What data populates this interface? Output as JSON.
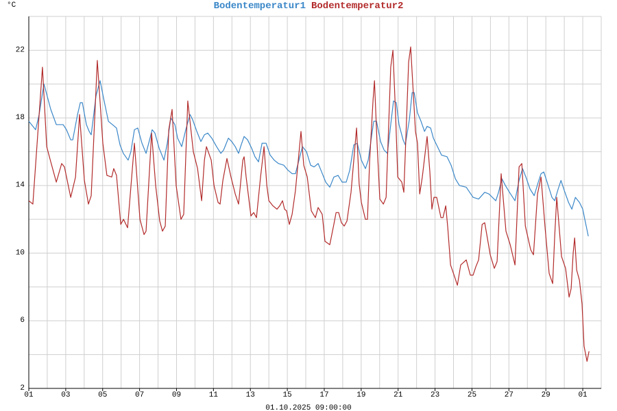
{
  "chart_data": {
    "type": "line",
    "y_label": "°C",
    "x_label": "01.10.2025 09:00:00",
    "xlim": [
      0,
      31
    ],
    "ylim": [
      2,
      24
    ],
    "xticks": [
      {
        "value": 0,
        "label": "01"
      },
      {
        "value": 2,
        "label": "03"
      },
      {
        "value": 4,
        "label": "05"
      },
      {
        "value": 6,
        "label": "07"
      },
      {
        "value": 8,
        "label": "09"
      },
      {
        "value": 10,
        "label": "11"
      },
      {
        "value": 12,
        "label": "13"
      },
      {
        "value": 14,
        "label": "15"
      },
      {
        "value": 16,
        "label": "17"
      },
      {
        "value": 18,
        "label": "19"
      },
      {
        "value": 20,
        "label": "21"
      },
      {
        "value": 22,
        "label": "23"
      },
      {
        "value": 24,
        "label": "25"
      },
      {
        "value": 26,
        "label": "27"
      },
      {
        "value": 28,
        "label": "29"
      },
      {
        "value": 30,
        "label": "01"
      }
    ],
    "x_minor_ticks": [
      1,
      3,
      5,
      7,
      9,
      11,
      13,
      15,
      17,
      19,
      21,
      23,
      25,
      27,
      29,
      31
    ],
    "yticks": [
      2,
      6,
      10,
      14,
      18,
      22
    ],
    "y_minor_ticks": [
      4,
      8,
      12,
      16,
      20,
      24
    ],
    "grid": true,
    "series": [
      {
        "name": "Bodentemperatur1",
        "color": "#3a87c8",
        "x": [
          0,
          0.37,
          0.56,
          0.82,
          0.97,
          1.19,
          1.49,
          1.86,
          2.04,
          2.27,
          2.38,
          2.64,
          2.79,
          2.9,
          3.12,
          3.27,
          3.38,
          3.64,
          3.86,
          4.08,
          4.31,
          4.53,
          4.75,
          4.94,
          5.12,
          5.38,
          5.53,
          5.72,
          5.9,
          6.13,
          6.35,
          6.54,
          6.68,
          6.83,
          7.06,
          7.32,
          7.5,
          7.69,
          7.91,
          8.06,
          8.28,
          8.5,
          8.73,
          8.87,
          9.1,
          9.32,
          9.51,
          9.69,
          9.91,
          10.17,
          10.4,
          10.55,
          10.81,
          10.99,
          11.18,
          11.36,
          11.47,
          11.66,
          11.85,
          12.07,
          12.25,
          12.44,
          12.63,
          12.85,
          13.07,
          13.29,
          13.52,
          13.81,
          14.04,
          14.26,
          14.44,
          14.63,
          14.82,
          15.04,
          15.26,
          15.45,
          15.67,
          15.86,
          16.08,
          16.3,
          16.52,
          16.75,
          16.97,
          17.19,
          17.38,
          17.6,
          17.79,
          18.01,
          18.23,
          18.38,
          18.68,
          18.83,
          19.05,
          19.24,
          19.42,
          19.61,
          19.75,
          19.9,
          20.05,
          20.27,
          20.39,
          20.61,
          20.76,
          20.87,
          21.05,
          21.24,
          21.43,
          21.57,
          21.76,
          21.91,
          22.13,
          22.35,
          22.65,
          22.87,
          23.1,
          23.32,
          23.69,
          24.06,
          24.36,
          24.69,
          24.92,
          25.29,
          25.44,
          25.62,
          25.81,
          26.03,
          26.33,
          26.55,
          26.74,
          26.92,
          27.14,
          27.37,
          27.59,
          27.74,
          27.89,
          28.07,
          28.33,
          28.48,
          28.67,
          28.82,
          29,
          29.23,
          29.41,
          29.6,
          29.82,
          30,
          30.11,
          30.3
        ],
        "values": [
          17.8,
          17.3,
          18.2,
          20,
          19.4,
          18.5,
          17.6,
          17.6,
          17.3,
          16.7,
          16.7,
          18.2,
          18.9,
          18.9,
          17.6,
          17.2,
          17,
          19.3,
          20.2,
          19,
          17.8,
          17.6,
          17.4,
          16.4,
          15.9,
          15.5,
          16,
          17.3,
          17.4,
          16.5,
          15.9,
          16.7,
          17.3,
          17.1,
          16.2,
          15.5,
          16.5,
          18,
          17.6,
          16.8,
          16.3,
          17.3,
          18.2,
          17.9,
          17.2,
          16.6,
          17,
          17.1,
          16.8,
          16.3,
          15.9,
          16.1,
          16.8,
          16.6,
          16.3,
          15.9,
          16.3,
          16.9,
          16.7,
          16.2,
          15.7,
          15.4,
          16.5,
          16.5,
          15.8,
          15.5,
          15.3,
          15.2,
          14.9,
          14.7,
          14.7,
          15.5,
          16.3,
          16,
          15.2,
          15.1,
          15.3,
          14.8,
          14.2,
          13.9,
          14.5,
          14.6,
          14.2,
          14.2,
          14.9,
          16.4,
          16.5,
          15.5,
          15,
          15.5,
          17.8,
          17.8,
          16.6,
          16.1,
          15.9,
          17.7,
          19,
          18.9,
          17.6,
          16.7,
          16.4,
          17.9,
          19.5,
          19.5,
          18.3,
          17.8,
          17.2,
          17.5,
          17.4,
          16.8,
          16.3,
          15.8,
          15.7,
          15.2,
          14.4,
          14,
          13.9,
          13.3,
          13.2,
          13.6,
          13.5,
          13.1,
          13.6,
          14.4,
          14,
          13.6,
          13.1,
          14.3,
          15,
          14.5,
          13.8,
          13.4,
          14.2,
          14.7,
          14.8,
          14.2,
          13.3,
          13.1,
          13.8,
          14.3,
          13.7,
          13,
          12.6,
          13.3,
          13,
          12.6,
          12,
          11
        ]
      },
      {
        "name": "Bodentemperatur2",
        "color": "#b22a2a",
        "x": [
          0,
          0.22,
          0.74,
          0.97,
          1.19,
          1.49,
          1.78,
          1.93,
          2.27,
          2.53,
          2.75,
          3.01,
          3.23,
          3.38,
          3.71,
          4.01,
          4.23,
          4.49,
          4.6,
          4.75,
          4.98,
          5.13,
          5.35,
          5.72,
          6.02,
          6.24,
          6.35,
          6.65,
          6.87,
          7.09,
          7.24,
          7.39,
          7.58,
          7.76,
          7.98,
          8.24,
          8.39,
          8.61,
          8.91,
          9.14,
          9.36,
          9.51,
          9.62,
          9.88,
          10.03,
          10.25,
          10.36,
          10.51,
          10.73,
          10.95,
          11.18,
          11.36,
          11.59,
          11.66,
          11.77,
          12.03,
          12.18,
          12.33,
          12.55,
          12.74,
          12.89,
          13,
          13.22,
          13.44,
          13.59,
          13.74,
          13.85,
          13.96,
          14.11,
          14.26,
          14.44,
          14.74,
          14.89,
          15.08,
          15.3,
          15.52,
          15.67,
          15.89,
          16.04,
          16.3,
          16.52,
          16.64,
          16.78,
          16.93,
          17.08,
          17.23,
          17.45,
          17.75,
          17.89,
          18.01,
          18.23,
          18.34,
          18.46,
          18.64,
          18.72,
          18.86,
          19.01,
          19.2,
          19.35,
          19.6,
          19.72,
          19.87,
          19.98,
          20.2,
          20.31,
          20.46,
          20.57,
          20.68,
          20.94,
          21.05,
          21.17,
          21.31,
          21.57,
          21.72,
          21.83,
          21.94,
          22.09,
          22.32,
          22.43,
          22.58,
          22.69,
          22.84,
          23.06,
          23.21,
          23.39,
          23.69,
          23.91,
          24.06,
          24.21,
          24.36,
          24.55,
          24.69,
          24.99,
          25.21,
          25.36,
          25.58,
          25.84,
          26.07,
          26.33,
          26.55,
          26.7,
          26.89,
          27.18,
          27.33,
          27.55,
          27.74,
          27.96,
          28.18,
          28.37,
          28.48,
          28.59,
          28.85,
          29.07,
          29.26,
          29.37,
          29.48,
          29.56,
          29.67,
          29.82,
          29.96,
          30.07,
          30.23,
          30.34
        ],
        "values": [
          13.1,
          12.9,
          21,
          16.3,
          15.4,
          14.2,
          15.3,
          15.1,
          13.3,
          14.5,
          18.2,
          14.3,
          12.9,
          13.4,
          21.4,
          16.5,
          14.6,
          14.5,
          15,
          14.6,
          11.7,
          12,
          11.5,
          16.5,
          12,
          11.1,
          11.3,
          17.1,
          14,
          11.9,
          11.3,
          11.6,
          17.3,
          18.5,
          14,
          12,
          12.3,
          19,
          16,
          15,
          13.1,
          15.5,
          16.3,
          15.5,
          14,
          13,
          12.9,
          14.3,
          15.6,
          14.5,
          13.5,
          12.9,
          15.5,
          15.7,
          14.5,
          12.2,
          12.4,
          12.1,
          14.5,
          16.3,
          14,
          13.1,
          12.8,
          12.6,
          12.8,
          13.1,
          12.6,
          12.5,
          11.7,
          12.3,
          13.7,
          17.2,
          15.2,
          14.5,
          12.5,
          12.1,
          12.7,
          12.3,
          10.7,
          10.5,
          11.7,
          12.4,
          12.4,
          11.8,
          11.6,
          11.9,
          13.6,
          17.4,
          14.1,
          13,
          12,
          12,
          15.5,
          19,
          20.2,
          16.5,
          13.2,
          12.9,
          13.3,
          21,
          22,
          18,
          14.5,
          14.2,
          13.6,
          18,
          21.3,
          22.2,
          17.2,
          16.5,
          13.5,
          14.5,
          16.9,
          14.8,
          12.6,
          13.3,
          13.3,
          12.1,
          12.1,
          12.8,
          11.5,
          9.3,
          8.6,
          8.1,
          9.3,
          9.6,
          8.7,
          8.7,
          9.2,
          9.6,
          11.7,
          11.8,
          9.9,
          9.1,
          9.5,
          14.7,
          11.3,
          10.5,
          9.3,
          15.1,
          15.3,
          11.6,
          10.2,
          9.9,
          13.5,
          14.5,
          11.5,
          8.8,
          8.2,
          11,
          13.3,
          9.8,
          9.1,
          7.4,
          7.9,
          10,
          10.9,
          9,
          8.4,
          7,
          4.5,
          3.6,
          4.2
        ]
      }
    ]
  }
}
